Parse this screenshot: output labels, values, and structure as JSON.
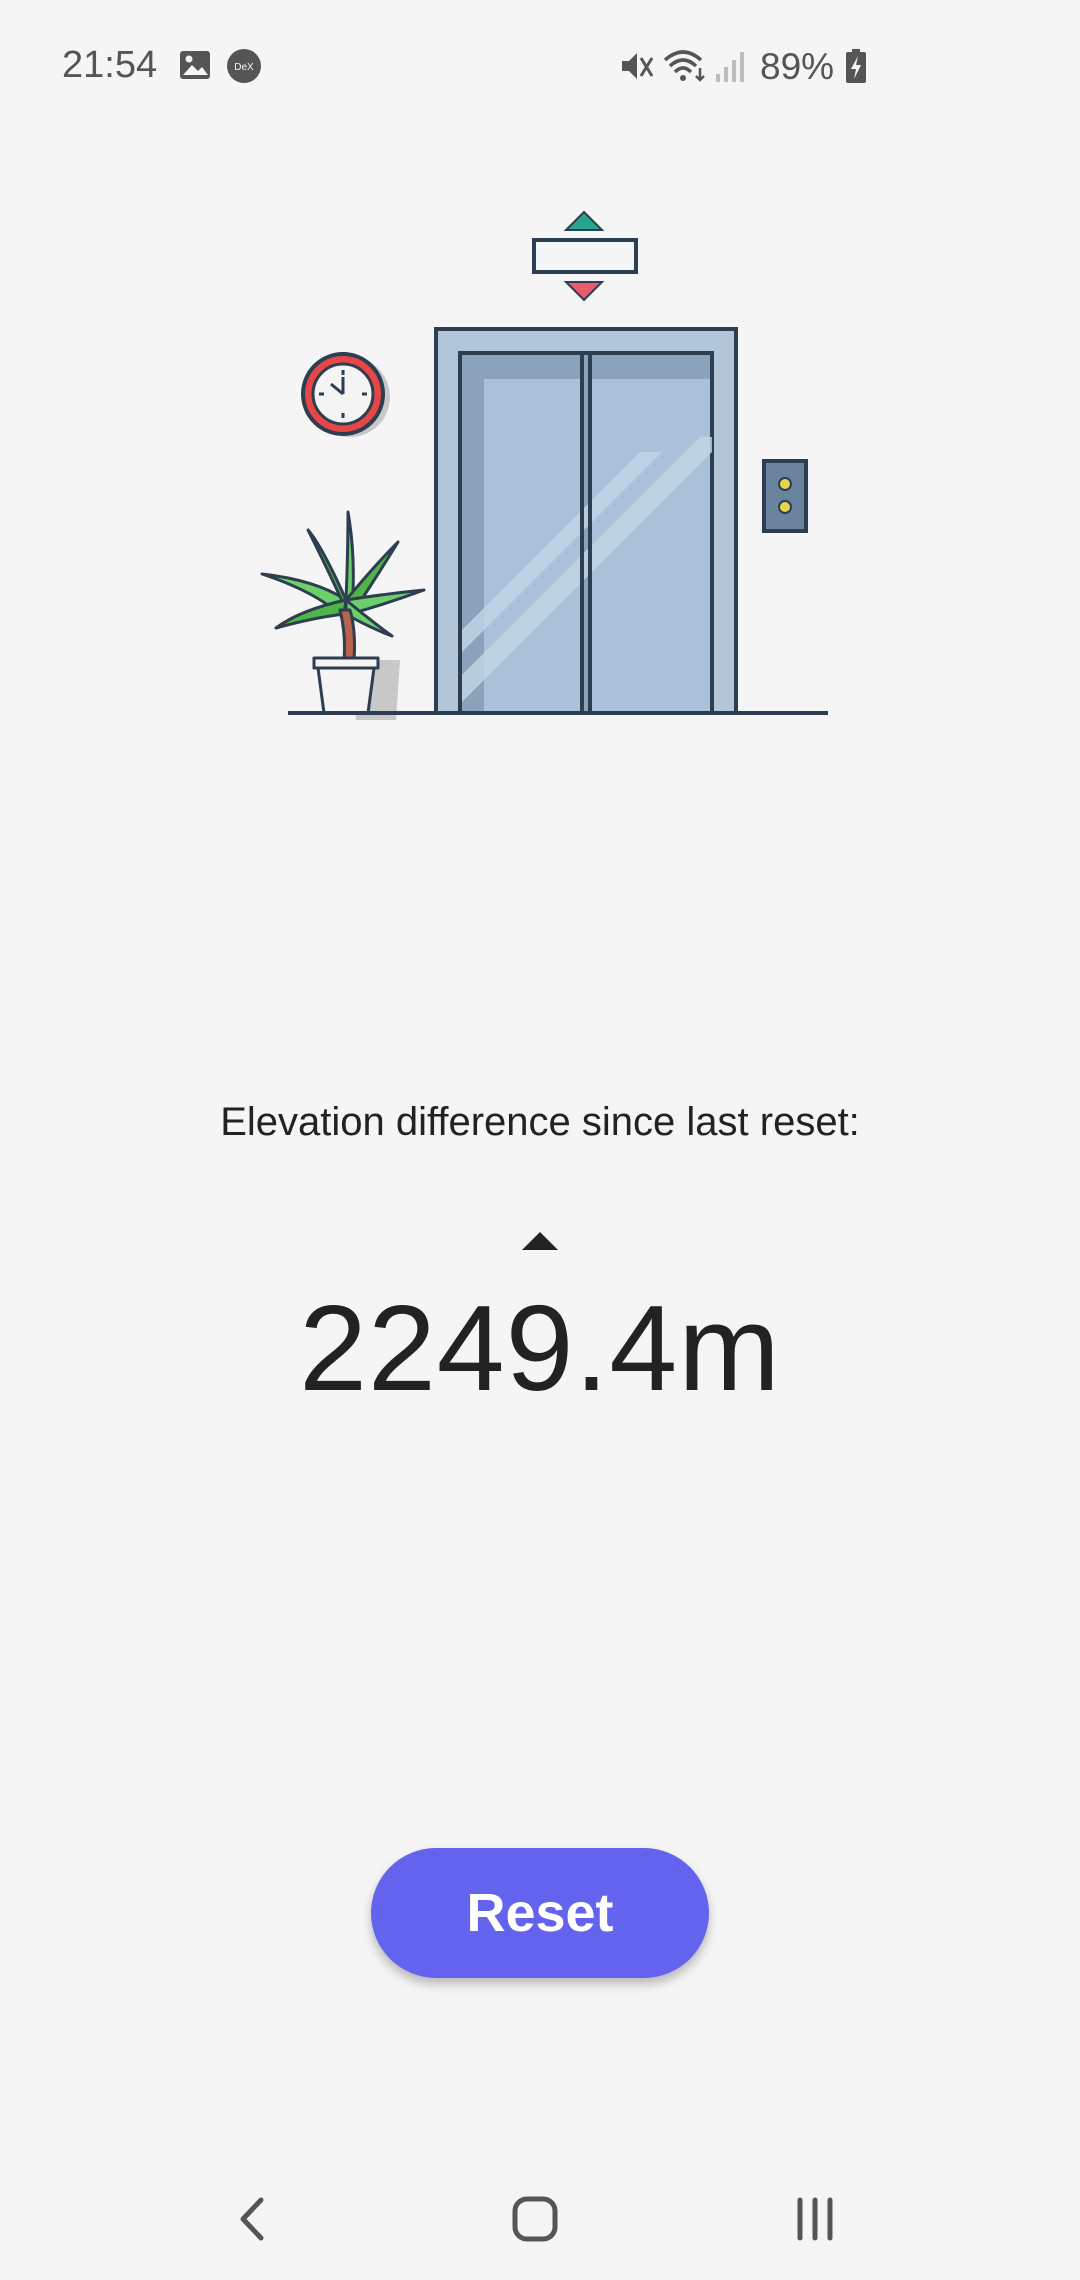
{
  "status_bar": {
    "time": "21:54",
    "notification_icons": [
      "gallery-icon",
      "dex-icon"
    ],
    "system_icons": [
      "mute-icon",
      "wifi-icon",
      "signal-icon"
    ],
    "battery_percent": "89%",
    "battery_icon": "battery-charging-icon"
  },
  "main": {
    "elevation_label": "Elevation difference since last reset:",
    "direction": "up",
    "elevation_value": "2249.4m",
    "reset_label": "Reset"
  },
  "nav_bar": {
    "back_icon": "back-icon",
    "home_icon": "home-icon",
    "recents_icon": "recents-icon"
  },
  "colors": {
    "accent": "#6363ee",
    "background": "#f5f5f5",
    "text": "#222222"
  }
}
